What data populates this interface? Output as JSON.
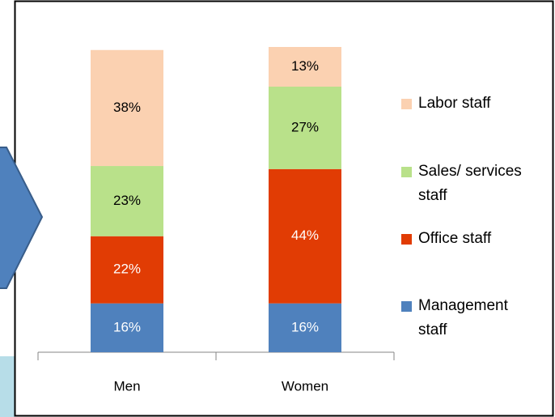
{
  "chart_data": {
    "type": "stacked_bar",
    "categories": [
      "Men",
      "Women"
    ],
    "series": [
      {
        "name": "Management staff",
        "color": "#4f81bd",
        "values": [
          16,
          16
        ],
        "value_labels": [
          "16%",
          "16%"
        ]
      },
      {
        "name": "Office staff",
        "color": "#e13c04",
        "values": [
          22,
          44
        ],
        "value_labels": [
          "22%",
          "44%"
        ]
      },
      {
        "name": "Sales/ services staff",
        "color": "#b9e18a",
        "values": [
          23,
          27
        ],
        "value_labels": [
          "23%",
          "27%"
        ]
      },
      {
        "name": "Labor staff",
        "color": "#fbd1b1",
        "values": [
          38,
          13
        ],
        "value_labels": [
          "38%",
          "13%"
        ]
      }
    ],
    "legend": "right"
  }
}
